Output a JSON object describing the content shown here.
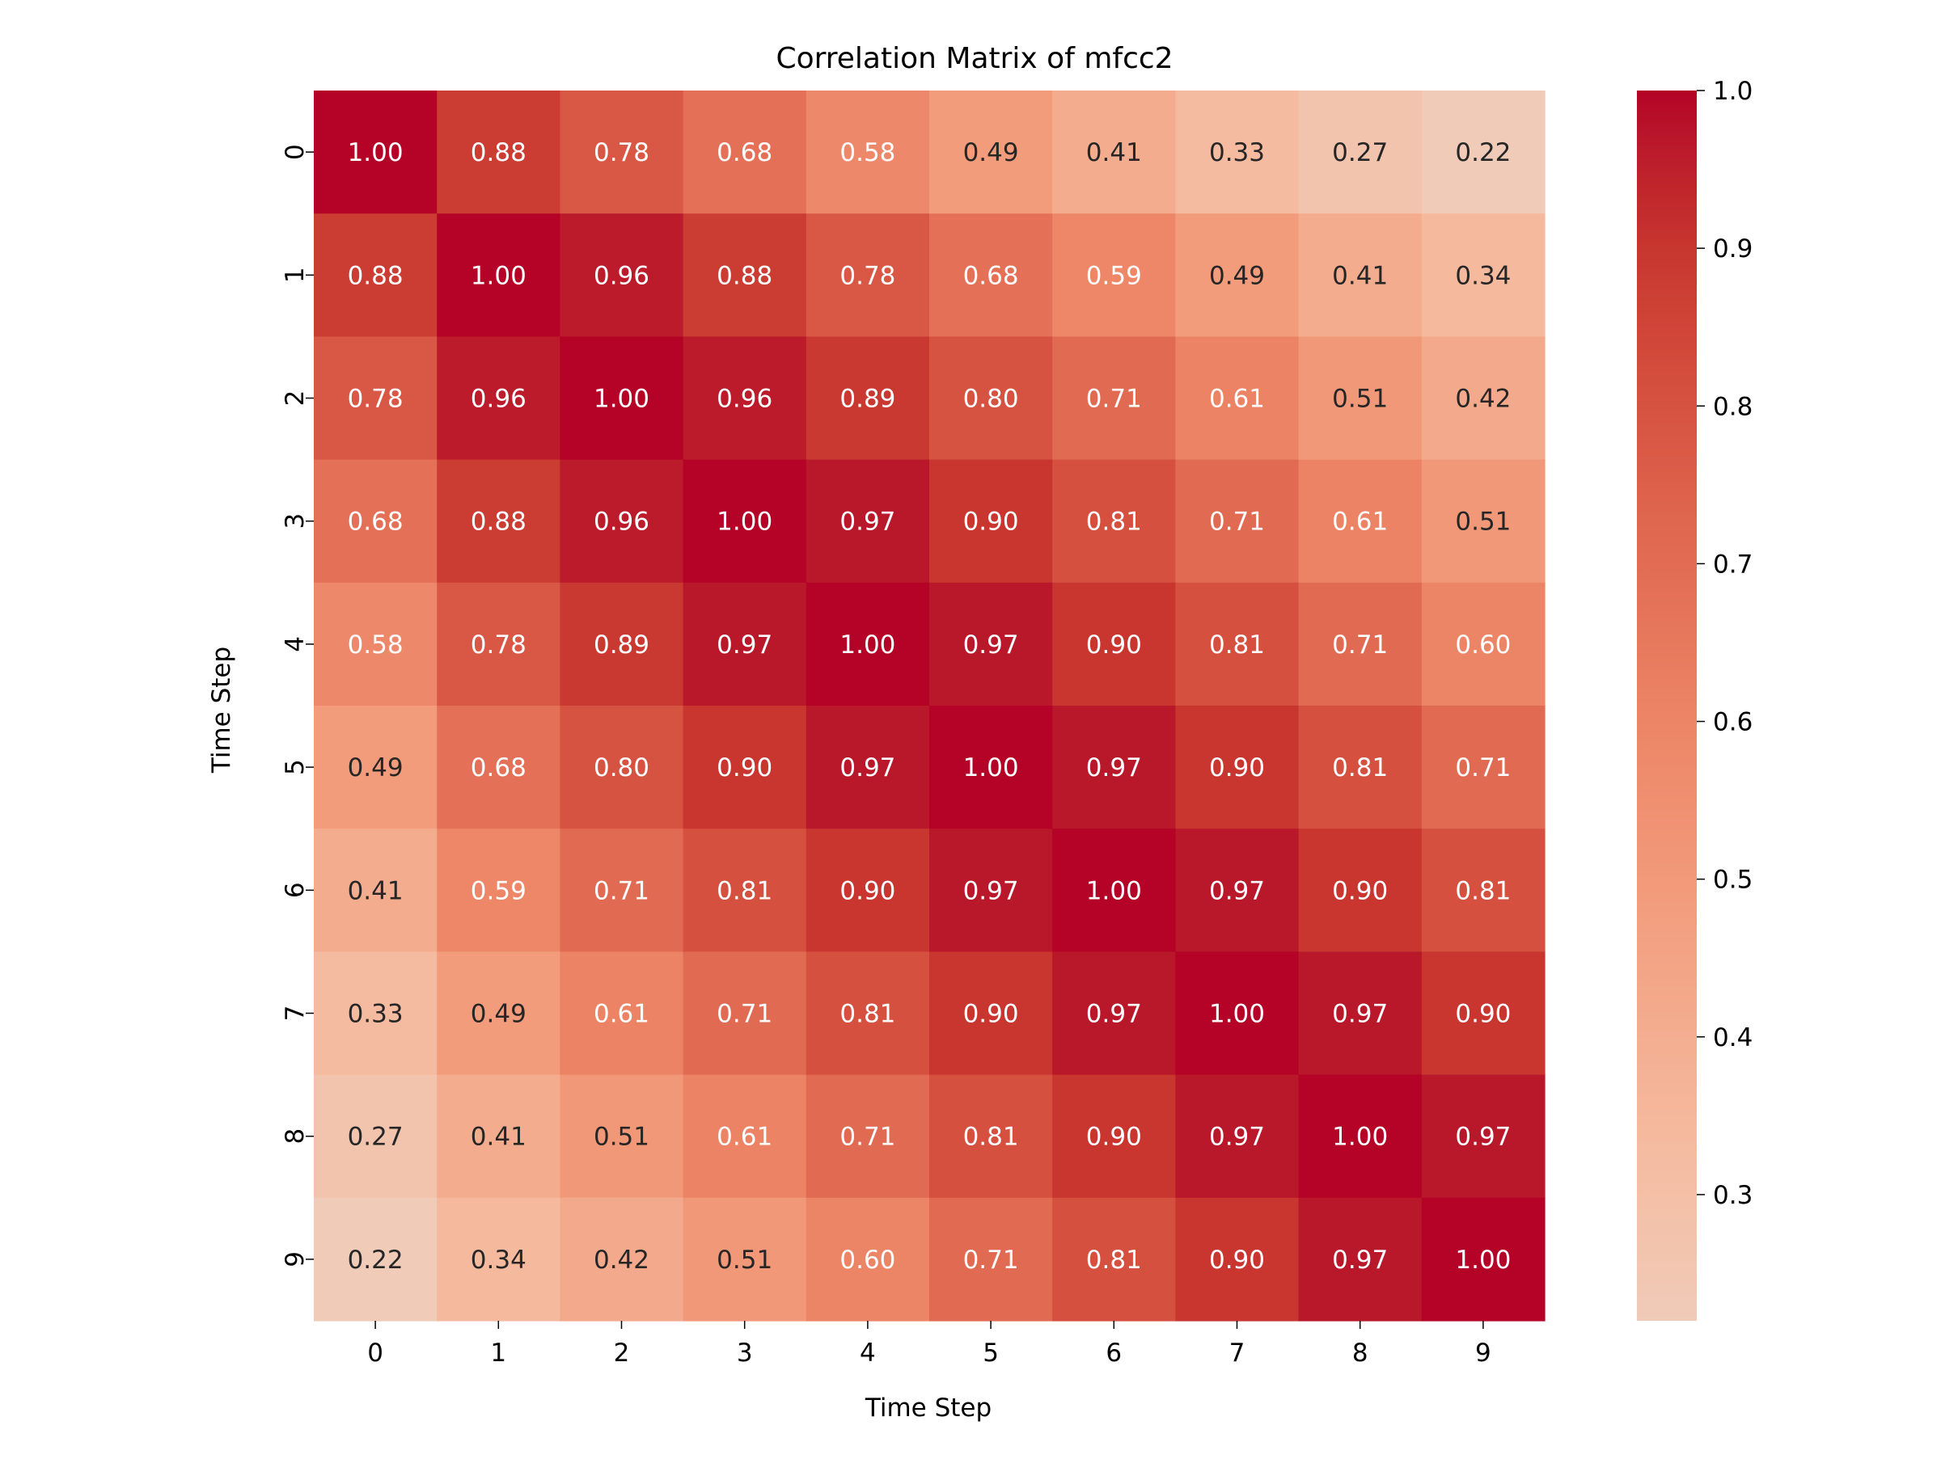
{
  "chart_data": {
    "type": "heatmap",
    "title": "Correlation Matrix of mfcc2",
    "xlabel": "Time Step",
    "ylabel": "Time Step",
    "x_categories": [
      "0",
      "1",
      "2",
      "3",
      "4",
      "5",
      "6",
      "7",
      "8",
      "9"
    ],
    "y_categories": [
      "0",
      "1",
      "2",
      "3",
      "4",
      "5",
      "6",
      "7",
      "8",
      "9"
    ],
    "values": [
      [
        1.0,
        0.88,
        0.78,
        0.68,
        0.58,
        0.49,
        0.41,
        0.33,
        0.27,
        0.22
      ],
      [
        0.88,
        1.0,
        0.96,
        0.88,
        0.78,
        0.68,
        0.59,
        0.49,
        0.41,
        0.34
      ],
      [
        0.78,
        0.96,
        1.0,
        0.96,
        0.89,
        0.8,
        0.71,
        0.61,
        0.51,
        0.42
      ],
      [
        0.68,
        0.88,
        0.96,
        1.0,
        0.97,
        0.9,
        0.81,
        0.71,
        0.61,
        0.51
      ],
      [
        0.58,
        0.78,
        0.89,
        0.97,
        1.0,
        0.97,
        0.9,
        0.81,
        0.71,
        0.6
      ],
      [
        0.49,
        0.68,
        0.8,
        0.9,
        0.97,
        1.0,
        0.97,
        0.9,
        0.81,
        0.71
      ],
      [
        0.41,
        0.59,
        0.71,
        0.81,
        0.9,
        0.97,
        1.0,
        0.97,
        0.9,
        0.81
      ],
      [
        0.33,
        0.49,
        0.61,
        0.71,
        0.81,
        0.9,
        0.97,
        1.0,
        0.97,
        0.9
      ],
      [
        0.27,
        0.41,
        0.51,
        0.61,
        0.71,
        0.81,
        0.9,
        0.97,
        1.0,
        0.97
      ],
      [
        0.22,
        0.34,
        0.42,
        0.51,
        0.6,
        0.71,
        0.81,
        0.9,
        0.97,
        1.0
      ]
    ],
    "value_format": "0.00",
    "colorbar": {
      "range": [
        0.22,
        1.0
      ],
      "ticks": [
        0.3,
        0.4,
        0.5,
        0.6,
        0.7,
        0.8,
        0.9,
        1.0
      ],
      "tick_labels": [
        "0.3",
        "0.4",
        "0.5",
        "0.6",
        "0.7",
        "0.8",
        "0.9",
        "1.0"
      ]
    },
    "colormap": {
      "name": "coolwarm (upper half)",
      "stops": [
        {
          "v": 0.22,
          "color": "#f0cbb8"
        },
        {
          "v": 0.33,
          "color": "#f5bba0"
        },
        {
          "v": 0.49,
          "color": "#f29c7c"
        },
        {
          "v": 0.6,
          "color": "#ec8566"
        },
        {
          "v": 0.71,
          "color": "#e16a52"
        },
        {
          "v": 0.81,
          "color": "#d5503f"
        },
        {
          "v": 0.9,
          "color": "#c8362f"
        },
        {
          "v": 0.97,
          "color": "#b9172a"
        },
        {
          "v": 1.0,
          "color": "#b40326"
        }
      ]
    },
    "grid": false,
    "legend": "colorbar-right"
  }
}
